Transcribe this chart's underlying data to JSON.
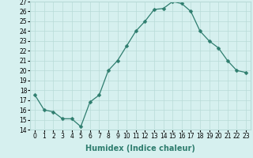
{
  "title": "",
  "xlabel": "Humidex (Indice chaleur)",
  "x": [
    0,
    1,
    2,
    3,
    4,
    5,
    6,
    7,
    8,
    9,
    10,
    11,
    12,
    13,
    14,
    15,
    16,
    17,
    18,
    19,
    20,
    21,
    22,
    23
  ],
  "y": [
    17.5,
    16.0,
    15.8,
    15.1,
    15.1,
    14.3,
    16.8,
    17.5,
    20.0,
    21.0,
    22.5,
    24.0,
    25.0,
    26.2,
    26.3,
    27.0,
    26.8,
    26.0,
    24.0,
    23.0,
    22.3,
    21.0,
    20.0,
    19.8
  ],
  "line_color": "#2e7d6e",
  "marker": "D",
  "marker_size": 2.5,
  "bg_color": "#d6f0ef",
  "grid_color": "#b8dbd8",
  "ylim": [
    14,
    27
  ],
  "yticks": [
    14,
    15,
    16,
    17,
    18,
    19,
    20,
    21,
    22,
    23,
    24,
    25,
    26,
    27
  ],
  "xticks": [
    0,
    1,
    2,
    3,
    4,
    5,
    6,
    7,
    8,
    9,
    10,
    11,
    12,
    13,
    14,
    15,
    16,
    17,
    18,
    19,
    20,
    21,
    22,
    23
  ],
  "tick_fontsize": 5.5,
  "xlabel_fontsize": 7
}
